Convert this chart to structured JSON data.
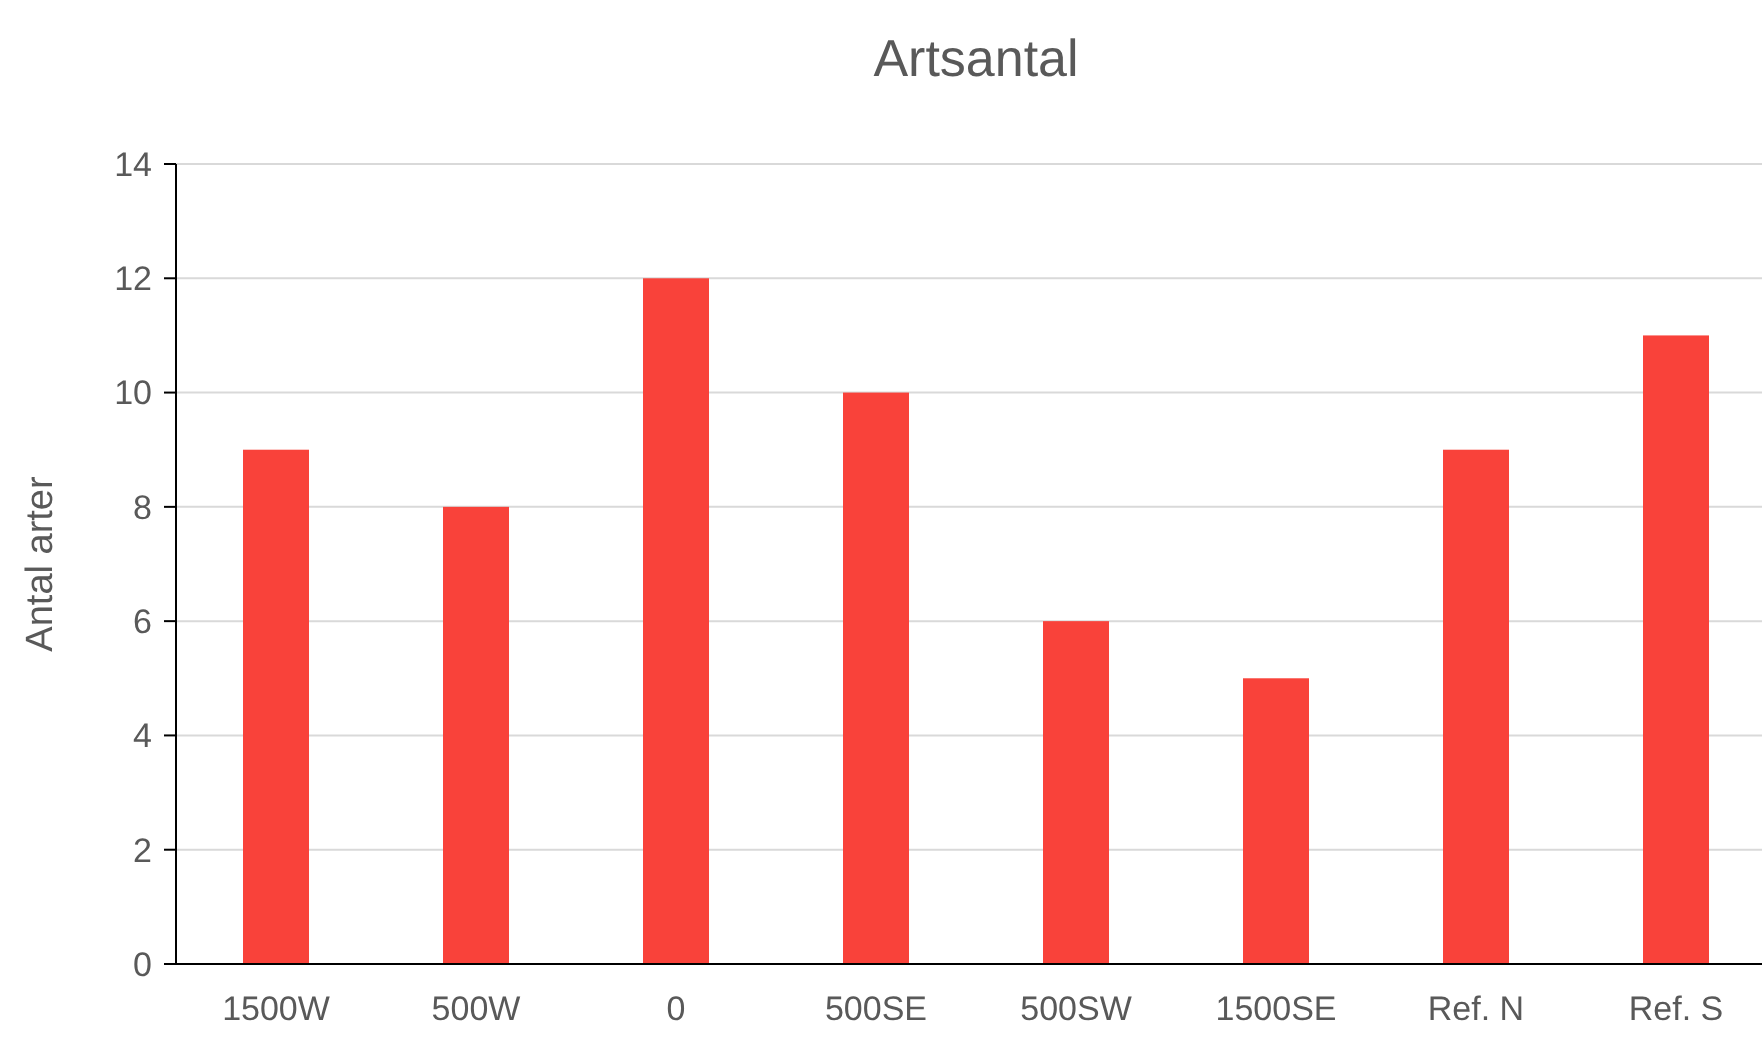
{
  "chart_data": {
    "type": "bar",
    "title": "Artsantal",
    "ylabel": "Antal arter",
    "categories": [
      "1500W",
      "500W",
      "0",
      "500SE",
      "500SW",
      "1500SE",
      "Ref. N",
      "Ref. S"
    ],
    "values": [
      9,
      8,
      12,
      10,
      6,
      5,
      9,
      11
    ],
    "color": "#f9423a",
    "ylim": [
      0,
      14
    ],
    "yticks": [
      0,
      2,
      4,
      6,
      8,
      10,
      12,
      14
    ],
    "grid": "y"
  }
}
